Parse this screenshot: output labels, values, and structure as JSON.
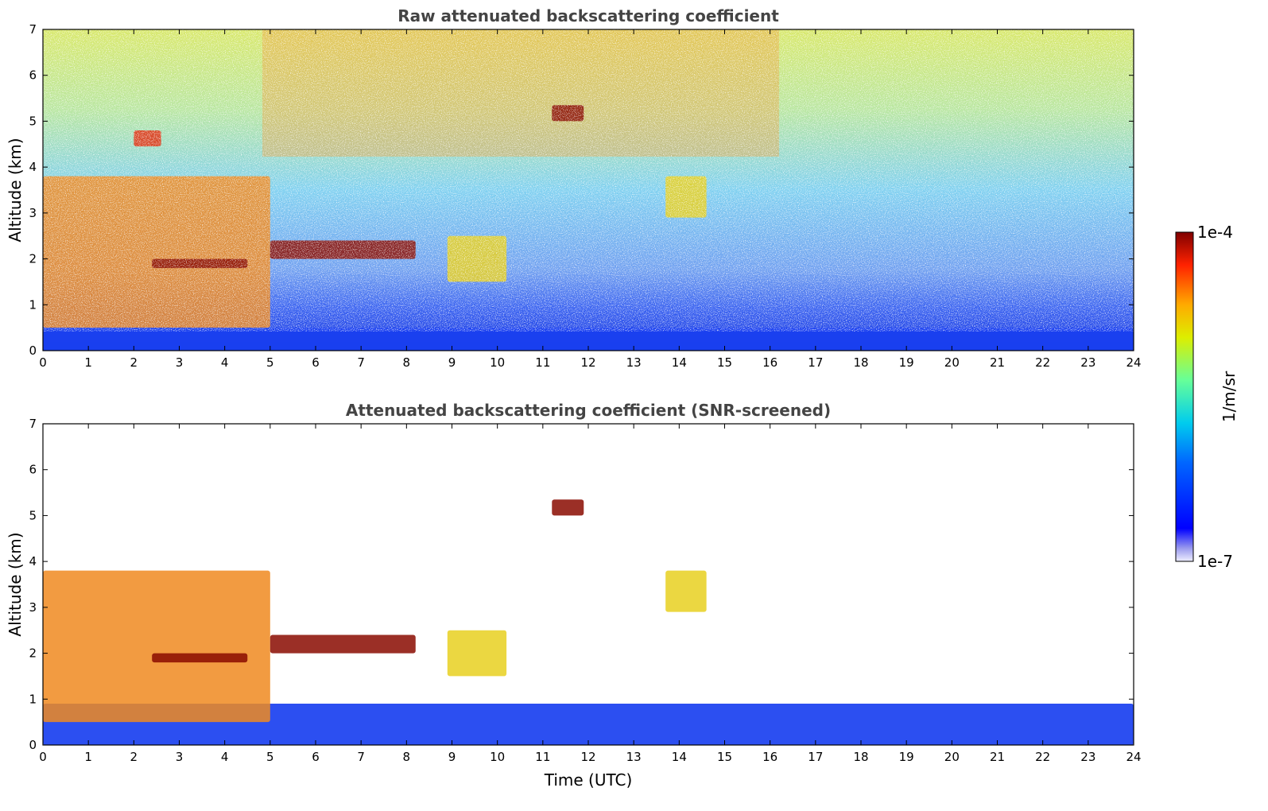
{
  "chart_data": [
    {
      "type": "heatmap",
      "title": "Raw attenuated backscattering coefficient",
      "ylabel": "Altitude (km)",
      "xlabel": "",
      "xlim": [
        0,
        24
      ],
      "ylim": [
        0,
        7
      ],
      "xticks": [
        "0",
        "1",
        "2",
        "3",
        "4",
        "5",
        "6",
        "7",
        "8",
        "9",
        "10",
        "11",
        "12",
        "13",
        "14",
        "15",
        "16",
        "17",
        "18",
        "19",
        "20",
        "21",
        "22",
        "23",
        "24"
      ],
      "yticks": [
        "0",
        "1",
        "2",
        "3",
        "4",
        "5",
        "6",
        "7"
      ],
      "features": [
        {
          "label": "surface boundary layer",
          "time_range": [
            0,
            24
          ],
          "altitude_range": [
            0,
            0.5
          ],
          "level": "low"
        },
        {
          "label": "noisy free troposphere",
          "time_range": [
            0,
            24
          ],
          "altitude_range": [
            1,
            7
          ],
          "level": "mixed"
        },
        {
          "label": "aerosol plume",
          "time_range": [
            0,
            5
          ],
          "altitude_range": [
            0.5,
            3.8
          ],
          "level": "moderate-high"
        },
        {
          "label": "cloud layer",
          "time_range": [
            2.4,
            4.5
          ],
          "altitude_range": [
            1.8,
            2.0
          ],
          "level": "saturated"
        },
        {
          "label": "cloud layer",
          "time_range": [
            5.0,
            8.2
          ],
          "altitude_range": [
            2.0,
            2.4
          ],
          "level": "saturated"
        },
        {
          "label": "cloud",
          "time_range": [
            11.2,
            11.9
          ],
          "altitude_range": [
            5.0,
            5.35
          ],
          "level": "saturated"
        },
        {
          "label": "cloud",
          "time_range": [
            2.0,
            2.6
          ],
          "altitude_range": [
            4.45,
            4.8
          ],
          "level": "high"
        },
        {
          "label": "aerosol",
          "time_range": [
            13.7,
            14.6
          ],
          "altitude_range": [
            2.9,
            3.8
          ],
          "level": "moderate"
        },
        {
          "label": "aerosol",
          "time_range": [
            8.9,
            10.2
          ],
          "altitude_range": [
            1.5,
            2.5
          ],
          "level": "moderate"
        }
      ]
    },
    {
      "type": "heatmap",
      "title": "Attenuated backscattering coefficient (SNR-screened)",
      "ylabel": "Altitude (km)",
      "xlabel": "Time (UTC)",
      "xlim": [
        0,
        24
      ],
      "ylim": [
        0,
        7
      ],
      "xticks": [
        "0",
        "1",
        "2",
        "3",
        "4",
        "5",
        "6",
        "7",
        "8",
        "9",
        "10",
        "11",
        "12",
        "13",
        "14",
        "15",
        "16",
        "17",
        "18",
        "19",
        "20",
        "21",
        "22",
        "23",
        "24"
      ],
      "yticks": [
        "0",
        "1",
        "2",
        "3",
        "4",
        "5",
        "6",
        "7"
      ],
      "features": [
        {
          "label": "surface boundary layer",
          "time_range": [
            0,
            24
          ],
          "altitude_range": [
            0,
            0.9
          ],
          "level": "low"
        },
        {
          "label": "aerosol plume",
          "time_range": [
            0,
            5
          ],
          "altitude_range": [
            0.5,
            3.8
          ],
          "level": "moderate-high"
        },
        {
          "label": "cloud layer",
          "time_range": [
            2.4,
            4.5
          ],
          "altitude_range": [
            1.8,
            2.0
          ],
          "level": "saturated"
        },
        {
          "label": "cloud layer",
          "time_range": [
            5.0,
            8.2
          ],
          "altitude_range": [
            2.0,
            2.4
          ],
          "level": "saturated"
        },
        {
          "label": "cloud",
          "time_range": [
            11.2,
            11.9
          ],
          "altitude_range": [
            5.0,
            5.35
          ],
          "level": "saturated"
        },
        {
          "label": "aerosol",
          "time_range": [
            13.7,
            14.6
          ],
          "altitude_range": [
            2.9,
            3.8
          ],
          "level": "moderate"
        },
        {
          "label": "aerosol",
          "time_range": [
            8.9,
            10.2
          ],
          "altitude_range": [
            1.5,
            2.5
          ],
          "level": "moderate"
        }
      ]
    }
  ],
  "colorbar": {
    "label": "1/m/sr",
    "max_label": "1e-4",
    "min_label": "1e-7",
    "scale": "log",
    "colormap": "jet"
  },
  "colors": {
    "title_text": "#444444",
    "background": "#ffffff",
    "jet_low": "#00007f",
    "jet_high": "#7f0000"
  }
}
